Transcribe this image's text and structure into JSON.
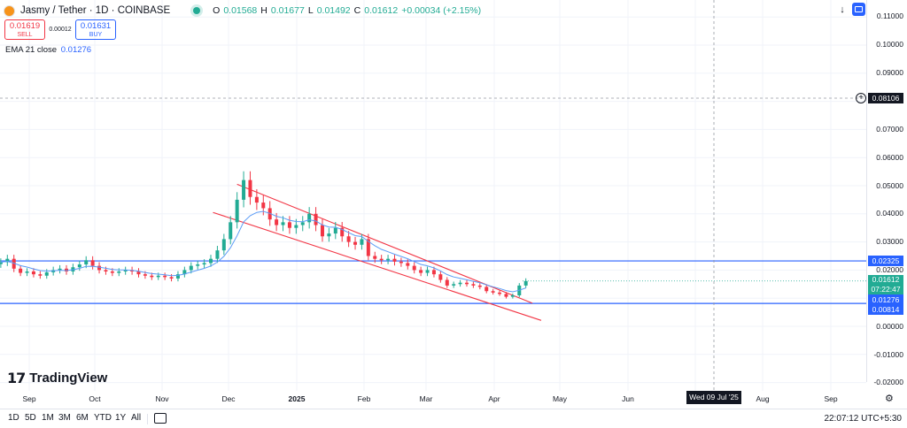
{
  "header": {
    "symbol_title": "Jasmy / Tether · 1D · COINBASE",
    "ohlc": [
      {
        "k": "O",
        "v": "0.01568"
      },
      {
        "k": "H",
        "v": "0.01677"
      },
      {
        "k": "L",
        "v": "0.01492"
      },
      {
        "k": "C",
        "v": "0.01612"
      }
    ],
    "change": "+0.00034 (+2.15%)"
  },
  "trade": {
    "sell_price": "0.01619",
    "sell_label": "SELL",
    "spread": "0.00012",
    "buy_price": "0.01631",
    "buy_label": "BUY"
  },
  "indicator": {
    "label": "EMA 21 close",
    "value": "0.01276"
  },
  "price_axis": {
    "ticks": [
      "0.11000",
      "0.10000",
      "0.09000",
      "0.08000",
      "0.07000",
      "0.06000",
      "0.05000",
      "0.04000",
      "0.03000",
      "0.02000",
      "0.01000",
      "0.00000",
      "-0.01000",
      "-0.02000"
    ],
    "tags": {
      "crosshair": "0.08106",
      "resistance": "0.02325",
      "last_price": "0.01612",
      "countdown": "07:22:47",
      "ema": "0.01276",
      "support": "0.00814"
    }
  },
  "time_axis": {
    "ticks": [
      "Sep",
      "Oct",
      "Nov",
      "Dec",
      "2025",
      "Feb",
      "Mar",
      "Apr",
      "May",
      "Jun",
      "Jul",
      "Aug",
      "Sep"
    ],
    "crosshair": "Wed 09 Jul '25"
  },
  "watermark": "TradingView",
  "ranges": [
    "1D",
    "5D",
    "1M",
    "3M",
    "6M",
    "YTD",
    "1Y",
    "All"
  ],
  "clock": "22:07:12 UTC+5:30",
  "colors": {
    "up": "#22ab94",
    "down": "#f23645",
    "ema": "#5b9cf6",
    "channel": "#f23645",
    "level": "#2962ff"
  },
  "chart_data": {
    "type": "candlestick",
    "ylim": [
      -0.025,
      0.115
    ],
    "ema_period": 21,
    "horizontal_levels": [
      0.02325,
      0.00814
    ],
    "channel_upper": [
      [
        "2024-12-05",
        0.0505
      ],
      [
        "2025-04-19",
        0.0082
      ]
    ],
    "channel_lower": [
      [
        "2024-11-24",
        0.0405
      ],
      [
        "2025-04-23",
        0.0021
      ]
    ],
    "closes": [
      [
        "2024-08-19",
        0.0228
      ],
      [
        "2024-08-22",
        0.024
      ],
      [
        "2024-08-25",
        0.0205
      ],
      [
        "2024-08-28",
        0.019
      ],
      [
        "2024-08-31",
        0.0195
      ],
      [
        "2024-09-03",
        0.0185
      ],
      [
        "2024-09-06",
        0.018
      ],
      [
        "2024-09-09",
        0.0192
      ],
      [
        "2024-09-12",
        0.02
      ],
      [
        "2024-09-15",
        0.0205
      ],
      [
        "2024-09-18",
        0.0195
      ],
      [
        "2024-09-21",
        0.021
      ],
      [
        "2024-09-24",
        0.022
      ],
      [
        "2024-09-27",
        0.0235
      ],
      [
        "2024-09-30",
        0.0215
      ],
      [
        "2024-10-03",
        0.02
      ],
      [
        "2024-10-06",
        0.0195
      ],
      [
        "2024-10-09",
        0.019
      ],
      [
        "2024-10-12",
        0.0195
      ],
      [
        "2024-10-15",
        0.02
      ],
      [
        "2024-10-18",
        0.0195
      ],
      [
        "2024-10-21",
        0.0185
      ],
      [
        "2024-10-24",
        0.018
      ],
      [
        "2024-10-27",
        0.0175
      ],
      [
        "2024-10-30",
        0.018
      ],
      [
        "2024-11-02",
        0.0175
      ],
      [
        "2024-11-05",
        0.017
      ],
      [
        "2024-11-08",
        0.0185
      ],
      [
        "2024-11-11",
        0.02
      ],
      [
        "2024-11-14",
        0.0215
      ],
      [
        "2024-11-17",
        0.022
      ],
      [
        "2024-11-20",
        0.0225
      ],
      [
        "2024-11-23",
        0.024
      ],
      [
        "2024-11-26",
        0.027
      ],
      [
        "2024-11-29",
        0.031
      ],
      [
        "2024-12-02",
        0.037
      ],
      [
        "2024-12-05",
        0.045
      ],
      [
        "2024-12-08",
        0.052
      ],
      [
        "2024-12-11",
        0.046
      ],
      [
        "2024-12-14",
        0.044
      ],
      [
        "2024-12-17",
        0.042
      ],
      [
        "2024-12-20",
        0.038
      ],
      [
        "2024-12-23",
        0.036
      ],
      [
        "2024-12-26",
        0.037
      ],
      [
        "2024-12-29",
        0.035
      ],
      [
        "2025-01-01",
        0.036
      ],
      [
        "2025-01-04",
        0.037
      ],
      [
        "2025-01-07",
        0.04
      ],
      [
        "2025-01-10",
        0.036
      ],
      [
        "2025-01-13",
        0.032
      ],
      [
        "2025-01-16",
        0.033
      ],
      [
        "2025-01-19",
        0.035
      ],
      [
        "2025-01-22",
        0.032
      ],
      [
        "2025-01-25",
        0.03
      ],
      [
        "2025-01-28",
        0.029
      ],
      [
        "2025-01-31",
        0.031
      ],
      [
        "2025-02-03",
        0.025
      ],
      [
        "2025-02-06",
        0.024
      ],
      [
        "2025-02-09",
        0.0235
      ],
      [
        "2025-02-12",
        0.024
      ],
      [
        "2025-02-15",
        0.023
      ],
      [
        "2025-02-18",
        0.0225
      ],
      [
        "2025-02-21",
        0.0215
      ],
      [
        "2025-02-24",
        0.02
      ],
      [
        "2025-02-27",
        0.019
      ],
      [
        "2025-03-02",
        0.02
      ],
      [
        "2025-03-05",
        0.0185
      ],
      [
        "2025-03-08",
        0.0165
      ],
      [
        "2025-03-11",
        0.0145
      ],
      [
        "2025-03-14",
        0.015
      ],
      [
        "2025-03-17",
        0.0155
      ],
      [
        "2025-03-20",
        0.015
      ],
      [
        "2025-03-23",
        0.0145
      ],
      [
        "2025-03-26",
        0.014
      ],
      [
        "2025-03-29",
        0.0125
      ],
      [
        "2025-04-01",
        0.012
      ],
      [
        "2025-04-04",
        0.0115
      ],
      [
        "2025-04-07",
        0.0105
      ],
      [
        "2025-04-10",
        0.011
      ],
      [
        "2025-04-13",
        0.0145
      ],
      [
        "2025-04-16",
        0.0161
      ]
    ]
  }
}
